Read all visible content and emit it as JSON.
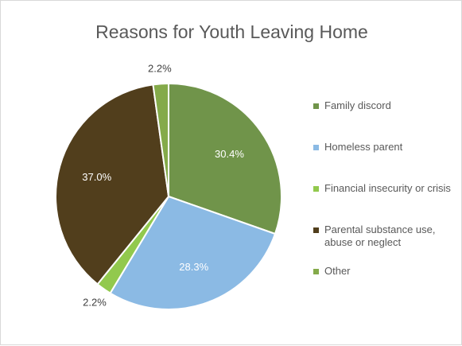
{
  "chart_data": {
    "type": "pie",
    "title": "Reasons for Youth Leaving Home",
    "slices": [
      {
        "name": "Family discord",
        "value": 30.4,
        "label": "30.4%",
        "color": "#70944a"
      },
      {
        "name": "Homeless parent",
        "value": 28.3,
        "label": "28.3%",
        "color": "#8bbae4"
      },
      {
        "name": "Financial insecurity or crisis",
        "value": 2.2,
        "label": "2.2%",
        "color": "#92c94d"
      },
      {
        "name": "Parental substance use, abuse or neglect",
        "value": 37.0,
        "label": "37.0%",
        "color": "#513e1c"
      },
      {
        "name": "Other",
        "value": 2.2,
        "label": "2.2%",
        "color": "#84aa4a"
      }
    ],
    "legend_position": "right"
  }
}
